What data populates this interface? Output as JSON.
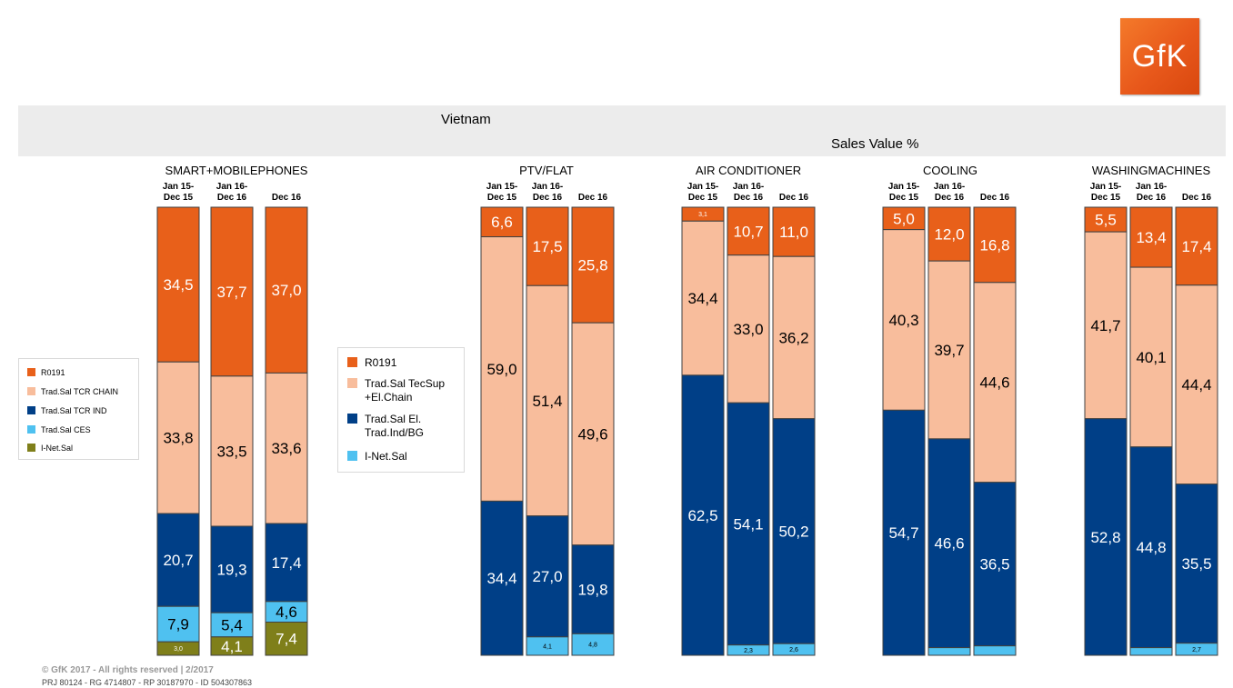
{
  "logo": {
    "text": "GfK"
  },
  "header": {
    "country": "Vietnam",
    "metric": "Sales Value %"
  },
  "legend_left": {
    "items": [
      {
        "label": "R0191",
        "color": "#e8601a"
      },
      {
        "label": "Trad.Sal TCR CHAIN",
        "color": "#f8bd9c"
      },
      {
        "label": "Trad.Sal TCR IND",
        "color": "#003f87"
      },
      {
        "label": "Trad.Sal CES",
        "color": "#4fc1f0"
      },
      {
        "label": "I-Net.Sal",
        "color": "#7f7f1a"
      }
    ]
  },
  "legend_right": {
    "items": [
      {
        "label": "R0191",
        "color": "#e8601a"
      },
      {
        "label": "Trad.Sal TecSup +El.Chain",
        "color": "#f8bd9c"
      },
      {
        "label": "Trad.Sal El. Trad.Ind/BG",
        "color": "#003f87"
      },
      {
        "label": "I-Net.Sal",
        "color": "#4fc1f0"
      }
    ]
  },
  "chart_data": [
    {
      "type": "bar",
      "title": "SMART+MOBILEPHONES",
      "categories": [
        "Jan 15-Dec 15",
        "Jan 16-Dec 16",
        "Dec 16"
      ],
      "series": [
        {
          "name": "R0191",
          "values": [
            34.5,
            37.7,
            37.0
          ],
          "labels": [
            "34,5",
            "37,7",
            "37,0"
          ]
        },
        {
          "name": "Trad.Sal TCR CHAIN",
          "values": [
            33.8,
            33.5,
            33.6
          ],
          "labels": [
            "33,8",
            "33,5",
            "33,6"
          ]
        },
        {
          "name": "Trad.Sal TCR IND",
          "values": [
            20.7,
            19.3,
            17.4
          ],
          "labels": [
            "20,7",
            "19,3",
            "17,4"
          ]
        },
        {
          "name": "Trad.Sal CES",
          "values": [
            7.9,
            5.4,
            4.6
          ],
          "labels": [
            "7,9",
            "5,4",
            "4,6"
          ]
        },
        {
          "name": "I-Net.Sal",
          "values": [
            3.0,
            4.1,
            7.4
          ],
          "labels": [
            "3,0",
            "4,1",
            "7,4"
          ]
        }
      ],
      "ylim": [
        0,
        100
      ]
    },
    {
      "type": "bar",
      "title": "PTV/FLAT",
      "categories": [
        "Jan 15-Dec 15",
        "Jan 16-Dec 16",
        "Dec 16"
      ],
      "series": [
        {
          "name": "R0191",
          "values": [
            6.6,
            17.5,
            25.8
          ],
          "labels": [
            "6,6",
            "17,5",
            "25,8"
          ]
        },
        {
          "name": "Trad.Sal TecSup +El.Chain",
          "values": [
            59.0,
            51.4,
            49.6
          ],
          "labels": [
            "59,0",
            "51,4",
            "49,6"
          ]
        },
        {
          "name": "Trad.Sal El. Trad.Ind/BG",
          "values": [
            34.4,
            27.0,
            19.8
          ],
          "labels": [
            "34,4",
            "27,0",
            "19,8"
          ]
        },
        {
          "name": "I-Net.Sal",
          "values": [
            0,
            4.1,
            4.8
          ],
          "labels": [
            "",
            "4,1",
            "4,8"
          ]
        }
      ],
      "ylim": [
        0,
        100
      ]
    },
    {
      "type": "bar",
      "title": "AIR CONDITIONER",
      "categories": [
        "Jan 15-Dec 15",
        "Jan 16-Dec 16",
        "Dec 16"
      ],
      "series": [
        {
          "name": "R0191",
          "values": [
            3.1,
            10.7,
            11.0
          ],
          "labels": [
            "3,1",
            "10,7",
            "11,0"
          ]
        },
        {
          "name": "Trad.Sal TecSup +El.Chain",
          "values": [
            34.4,
            33.0,
            36.2
          ],
          "labels": [
            "34,4",
            "33,0",
            "36,2"
          ]
        },
        {
          "name": "Trad.Sal El. Trad.Ind/BG",
          "values": [
            62.5,
            54.1,
            50.2
          ],
          "labels": [
            "62,5",
            "54,1",
            "50,2"
          ]
        },
        {
          "name": "I-Net.Sal",
          "values": [
            0,
            2.3,
            2.6
          ],
          "labels": [
            "",
            "2,3",
            "2,6"
          ]
        }
      ],
      "ylim": [
        0,
        100
      ]
    },
    {
      "type": "bar",
      "title": "COOLING",
      "categories": [
        "Jan 15-Dec 15",
        "Jan 16-Dec 16",
        "Dec 16"
      ],
      "series": [
        {
          "name": "R0191",
          "values": [
            5.0,
            12.0,
            16.8
          ],
          "labels": [
            "5,0",
            "12,0",
            "16,8"
          ]
        },
        {
          "name": "Trad.Sal TecSup +El.Chain",
          "values": [
            40.3,
            39.7,
            44.6
          ],
          "labels": [
            "40,3",
            "39,7",
            "44,6"
          ]
        },
        {
          "name": "Trad.Sal El. Trad.Ind/BG",
          "values": [
            54.7,
            46.6,
            36.5
          ],
          "labels": [
            "54,7",
            "46,6",
            "36,5"
          ]
        },
        {
          "name": "I-Net.Sal",
          "values": [
            0,
            1.7,
            2.1
          ],
          "labels": [
            "",
            "",
            ""
          ]
        }
      ],
      "ylim": [
        0,
        100
      ]
    },
    {
      "type": "bar",
      "title": "WASHINGMACHINES",
      "categories": [
        "Jan 15-Dec 15",
        "Jan 16-Dec 16",
        "Dec 16"
      ],
      "series": [
        {
          "name": "R0191",
          "values": [
            5.5,
            13.4,
            17.4
          ],
          "labels": [
            "5,5",
            "13,4",
            "17,4"
          ]
        },
        {
          "name": "Trad.Sal TecSup +El.Chain",
          "values": [
            41.7,
            40.1,
            44.4
          ],
          "labels": [
            "41,7",
            "40,1",
            "44,4"
          ]
        },
        {
          "name": "Trad.Sal El. Trad.Ind/BG",
          "values": [
            52.8,
            44.8,
            35.5
          ],
          "labels": [
            "52,8",
            "44,8",
            "35,5"
          ]
        },
        {
          "name": "I-Net.Sal",
          "values": [
            0,
            1.7,
            2.7
          ],
          "labels": [
            "",
            "",
            "2,7"
          ]
        }
      ],
      "ylim": [
        0,
        100
      ]
    }
  ],
  "footer": {
    "copyright": "© GfK 2017 - All rights reserved | 2/2017",
    "ids": "PRJ 80124 - RG 4714807 - RP 30187970 - ID 504307863"
  }
}
